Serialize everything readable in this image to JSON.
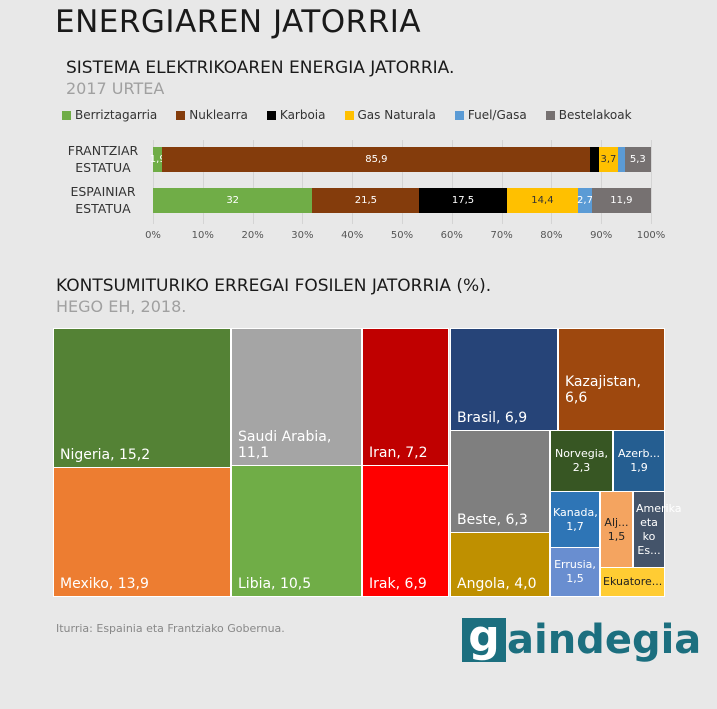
{
  "title": "ENERGIAREN JATORRIA",
  "source": "Iturria: Espainia  eta Frantziako Gobernua.",
  "logo": {
    "text": "gaindegia",
    "color": "#1c6f7f"
  },
  "chart_data": [
    {
      "type": "bar",
      "orientation": "horizontal-stacked-100",
      "title": "SISTEMA ELEKTRIKOAREN ENERGIA JATORRIA.",
      "subtitle": "2017 URTEA",
      "legend_position": "top",
      "categories": [
        "FRANTZIAR ESTATUA",
        "ESPAINIAR ESTATUA"
      ],
      "xticks": [
        "0%",
        "10%",
        "20%",
        "30%",
        "40%",
        "50%",
        "60%",
        "70%",
        "80%",
        "90%",
        "100%"
      ],
      "xlim": [
        0,
        100
      ],
      "grid": true,
      "series": [
        {
          "name": "Berriztagarria",
          "color": "#70ad47",
          "values": [
            1.9,
            32
          ],
          "labels": [
            "1,9",
            "32"
          ],
          "label_color": "#ffffff"
        },
        {
          "name": "Nuklearra",
          "color": "#843c0c",
          "values": [
            85.9,
            21.5
          ],
          "labels": [
            "85,9",
            "21,5"
          ],
          "label_color": "#ffffff"
        },
        {
          "name": "Karboia",
          "color": "#000000",
          "values": [
            1.8,
            17.5
          ],
          "labels": [
            "",
            "17,5"
          ],
          "label_color": "#ffffff"
        },
        {
          "name": "Gas Naturala",
          "color": "#ffc000",
          "values": [
            3.7,
            14.4
          ],
          "labels": [
            "3,7",
            "14,4"
          ],
          "label_color": "#333333"
        },
        {
          "name": "Fuel/Gasa",
          "color": "#5b9bd5",
          "values": [
            1.4,
            2.7
          ],
          "labels": [
            "",
            "2,7"
          ],
          "label_color": "#ffffff"
        },
        {
          "name": "Bestelakoak",
          "color": "#767171",
          "values": [
            5.3,
            11.9
          ],
          "labels": [
            "5,3",
            "11,9"
          ],
          "label_color": "#ffffff"
        }
      ]
    },
    {
      "type": "treemap",
      "title": "KONTSUMITURIKO ERREGAI FOSILEN JATORRIA (%).",
      "subtitle": "HEGO EH, 2018.",
      "items": [
        {
          "label": "Nigeria, 15,2",
          "value": 15.2,
          "color": "#548235"
        },
        {
          "label": "Mexiko, 13,9",
          "value": 13.9,
          "color": "#ed7d31"
        },
        {
          "label": "Saudi Arabia, 11,1",
          "value": 11.1,
          "color": "#a5a5a5"
        },
        {
          "label": "Libia, 10,5",
          "value": 10.5,
          "color": "#70ad47"
        },
        {
          "label": "Iran, 7,2",
          "value": 7.2,
          "color": "#c00000"
        },
        {
          "label": "Irak, 6,9",
          "value": 6.9,
          "color": "#ff0000"
        },
        {
          "label": "Brasil, 6,9",
          "value": 6.9,
          "color": "#264478"
        },
        {
          "label": "Kazajistan, 6,6",
          "value": 6.6,
          "color": "#9e480e"
        },
        {
          "label": "Beste, 6,3",
          "value": 6.3,
          "color": "#7f7f7f"
        },
        {
          "label": "Angola, 4,0",
          "value": 4.0,
          "color": "#bf9000"
        },
        {
          "label": "Norvegia, 2,3",
          "value": 2.3,
          "color": "#375623"
        },
        {
          "label": "Azerb... 1,9",
          "value": 1.9,
          "color": "#255e91"
        },
        {
          "label": "Kanada, 1,7",
          "value": 1.7,
          "color": "#2e75b6"
        },
        {
          "label": "Errusia, 1,5",
          "value": 1.5,
          "color": "#698ed0"
        },
        {
          "label": "Alj... 1,5",
          "value": 1.5,
          "color": "#f4a460"
        },
        {
          "label": "Amerika eta ko Es...",
          "value": null,
          "color": "#44546a"
        },
        {
          "label": "Ekuatore...",
          "value": null,
          "color": "#ffcc33"
        }
      ]
    }
  ]
}
